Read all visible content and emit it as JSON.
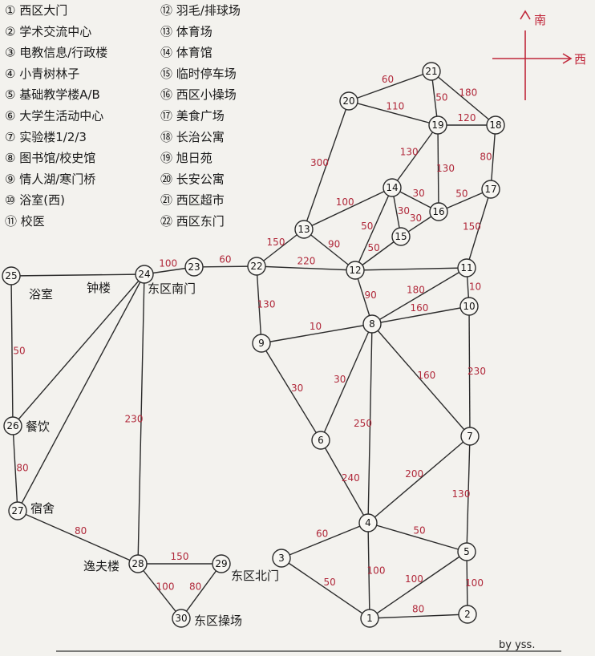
{
  "legend": [
    "① 西区大门",
    "② 学术交流中心",
    "③ 电教信息/行政楼",
    "④ 小青树林子",
    "⑤ 基础教学楼A/B",
    "⑥ 大学生活动中心",
    "⑦ 实验楼1/2/3",
    "⑧ 图书馆/校史馆",
    "⑨ 情人湖/寒门桥",
    "⑩ 浴室(西)",
    "⑪ 校医",
    "⑫ 羽毛/排球场",
    "⑬ 体育场",
    "⑭ 体育馆",
    "⑮ 临时停车场",
    "⑯ 西区小操场",
    "⑰ 美食广场",
    "⑱ 长治公寓",
    "⑲ 旭日苑",
    "⑳ 长安公寓",
    "㉑ 西区超市",
    "㉒ 西区东门"
  ],
  "compass": {
    "north": "南",
    "east": "西"
  },
  "places": [
    {
      "id": "25",
      "text": "浴室"
    },
    {
      "id": "24",
      "text": "钟楼"
    },
    {
      "id": "23",
      "text": "东区南门"
    },
    {
      "id": "26",
      "text": "餐饮"
    },
    {
      "id": "27",
      "text": "宿舍"
    },
    {
      "id": "28",
      "text": "逸夫楼"
    },
    {
      "id": "29",
      "text": "东区北门"
    },
    {
      "id": "30",
      "text": "东区操场"
    }
  ],
  "nodes": [
    "1",
    "2",
    "3",
    "4",
    "5",
    "6",
    "7",
    "8",
    "9",
    "10",
    "11",
    "12",
    "13",
    "14",
    "15",
    "16",
    "17",
    "18",
    "19",
    "20",
    "21",
    "22",
    "23",
    "24",
    "25",
    "26",
    "27",
    "28",
    "29",
    "30"
  ],
  "edges": [
    {
      "from": "21",
      "to": "20",
      "weight": "60"
    },
    {
      "from": "21",
      "to": "18",
      "weight": "180"
    },
    {
      "from": "21",
      "to": "19",
      "weight": "50"
    },
    {
      "from": "20",
      "to": "19",
      "weight": "110"
    },
    {
      "from": "19",
      "to": "18",
      "weight": "120"
    },
    {
      "from": "20",
      "to": "13",
      "weight": "300"
    },
    {
      "from": "19",
      "to": "14",
      "weight": "130"
    },
    {
      "from": "19",
      "to": "16",
      "weight": "130"
    },
    {
      "from": "18",
      "to": "17",
      "weight": "80"
    },
    {
      "from": "14",
      "to": "16",
      "weight": "30"
    },
    {
      "from": "16",
      "to": "17",
      "weight": "50"
    },
    {
      "from": "14",
      "to": "13",
      "weight": "100"
    },
    {
      "from": "14",
      "to": "15",
      "weight": "30"
    },
    {
      "from": "14",
      "to": "12",
      "weight": "50"
    },
    {
      "from": "15",
      "to": "16",
      "weight": "30"
    },
    {
      "from": "15",
      "to": "12",
      "weight": "50"
    },
    {
      "from": "13",
      "to": "12",
      "weight": "90"
    },
    {
      "from": "13",
      "to": "22",
      "weight": "150"
    },
    {
      "from": "17",
      "to": "11",
      "weight": "150"
    },
    {
      "from": "22",
      "to": "12",
      "weight": "220"
    },
    {
      "from": "12",
      "to": "11",
      "weight": ""
    },
    {
      "from": "22",
      "to": "9",
      "weight": "130"
    },
    {
      "from": "12",
      "to": "8",
      "weight": "90"
    },
    {
      "from": "11",
      "to": "8",
      "weight": "180"
    },
    {
      "from": "11",
      "to": "10",
      "weight": "10"
    },
    {
      "from": "10",
      "to": "8",
      "weight": "160"
    },
    {
      "from": "10",
      "to": "7",
      "weight": "230"
    },
    {
      "from": "9",
      "to": "8",
      "weight": "10"
    },
    {
      "from": "9",
      "to": "6",
      "weight": "30"
    },
    {
      "from": "8",
      "to": "6",
      "weight": "30"
    },
    {
      "from": "8",
      "to": "7",
      "weight": "160"
    },
    {
      "from": "8",
      "to": "4",
      "weight": "250"
    },
    {
      "from": "6",
      "to": "4",
      "weight": "240"
    },
    {
      "from": "7",
      "to": "4",
      "weight": "200"
    },
    {
      "from": "7",
      "to": "5",
      "weight": "130"
    },
    {
      "from": "4",
      "to": "3",
      "weight": "60"
    },
    {
      "from": "4",
      "to": "5",
      "weight": "50"
    },
    {
      "from": "4",
      "to": "1",
      "weight": "100"
    },
    {
      "from": "3",
      "to": "1",
      "weight": "50"
    },
    {
      "from": "5",
      "to": "1",
      "weight": "100"
    },
    {
      "from": "5",
      "to": "2",
      "weight": "100"
    },
    {
      "from": "1",
      "to": "2",
      "weight": "80"
    },
    {
      "from": "24",
      "to": "23",
      "weight": "100"
    },
    {
      "from": "23",
      "to": "22",
      "weight": "60"
    },
    {
      "from": "25",
      "to": "24",
      "weight": ""
    },
    {
      "from": "25",
      "to": "26",
      "weight": "50"
    },
    {
      "from": "26",
      "to": "27",
      "weight": "80"
    },
    {
      "from": "24",
      "to": "26",
      "weight": ""
    },
    {
      "from": "24",
      "to": "27",
      "weight": ""
    },
    {
      "from": "24",
      "to": "28",
      "weight": "230"
    },
    {
      "from": "27",
      "to": "28",
      "weight": "80"
    },
    {
      "from": "28",
      "to": "29",
      "weight": "150"
    },
    {
      "from": "28",
      "to": "30",
      "weight": "100"
    },
    {
      "from": "29",
      "to": "30",
      "weight": "80"
    }
  ],
  "signature": "by yss."
}
